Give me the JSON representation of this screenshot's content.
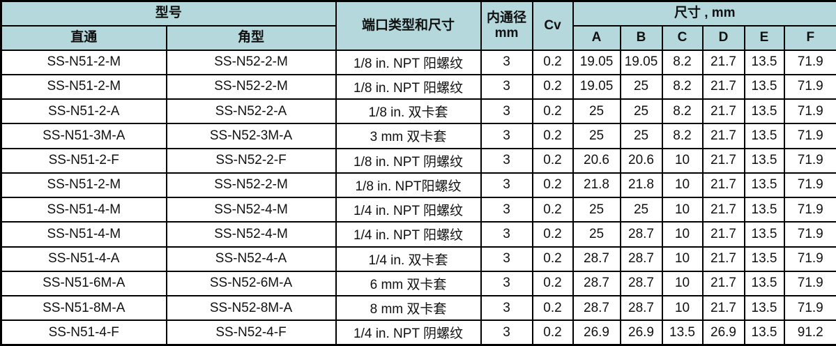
{
  "colors": {
    "header_bg": "#b5d8dc",
    "row_bg": "#ffffff",
    "border": "#000000",
    "text": "#111111"
  },
  "table": {
    "header": {
      "model_group": "型号",
      "straight": "直通",
      "angle": "角型",
      "port": "端口类型和尺寸",
      "bore": "内通径\nmm",
      "cv": "Cv",
      "dims_group": "尺寸 , mm",
      "dim_cols": {
        "a": "A",
        "b": "B",
        "c": "C",
        "d": "D",
        "e": "E",
        "f": "F"
      }
    },
    "rows": [
      {
        "straight": "SS-N51-2-M",
        "angle": "SS-N52-2-M",
        "port": "1/8 in. NPT 阳螺纹",
        "bore": "3",
        "cv": "0.2",
        "A": "19.05",
        "B": "19.05",
        "C": "8.2",
        "D": "21.7",
        "E": "13.5",
        "F": "71.9"
      },
      {
        "straight": "SS-N51-2-M",
        "angle": "SS-N52-2-M",
        "port": "1/8 in. NPT 阳螺纹",
        "bore": "3",
        "cv": "0.2",
        "A": "19.05",
        "B": "25",
        "C": "8.2",
        "D": "21.7",
        "E": "13.5",
        "F": "71.9"
      },
      {
        "straight": "SS-N51-2-A",
        "angle": "SS-N52-2-A",
        "port": "1/8 in. 双卡套",
        "bore": "3",
        "cv": "0.2",
        "A": "25",
        "B": "25",
        "C": "8.2",
        "D": "21.7",
        "E": "13.5",
        "F": "71.9"
      },
      {
        "straight": "SS-N51-3M-A",
        "angle": "SS-N52-3M-A",
        "port": "3 mm 双卡套",
        "bore": "3",
        "cv": "0.2",
        "A": "25",
        "B": "25",
        "C": "8.2",
        "D": "21.7",
        "E": "13.5",
        "F": "71.9"
      },
      {
        "straight": "SS-N51-2-F",
        "angle": "SS-N52-2-F",
        "port": "1/8 in. NPT 阴螺纹",
        "bore": "3",
        "cv": "0.2",
        "A": "20.6",
        "B": "20.6",
        "C": "10",
        "D": "21.7",
        "E": "13.5",
        "F": "71.9"
      },
      {
        "straight": "SS-N51-2-M",
        "angle": "SS-N52-2-M",
        "port": "1/8 in. NPT阳螺纹",
        "bore": "3",
        "cv": "0.2",
        "A": "21.8",
        "B": "21.8",
        "C": "10",
        "D": "21.7",
        "E": "13.5",
        "F": "71.9"
      },
      {
        "straight": "SS-N51-4-M",
        "angle": "SS-N52-4-M",
        "port": "1/4 in. NPT 阳螺纹",
        "bore": "3",
        "cv": "0.2",
        "A": "25",
        "B": "25",
        "C": "10",
        "D": "21.7",
        "E": "13.5",
        "F": "71.9"
      },
      {
        "straight": "SS-N51-4-M",
        "angle": "SS-N52-4-M",
        "port": "1/4 in. NPT 阳螺纹",
        "bore": "3",
        "cv": "0.2",
        "A": "25",
        "B": "28.7",
        "C": "10",
        "D": "21.7",
        "E": "13.5",
        "F": "71.9"
      },
      {
        "straight": "SS-N51-4-A",
        "angle": "SS-N52-4-A",
        "port": "1/4 in. 双卡套",
        "bore": "3",
        "cv": "0.2",
        "A": "28.7",
        "B": "28.7",
        "C": "10",
        "D": "21.7",
        "E": "13.5",
        "F": "71.9"
      },
      {
        "straight": "SS-N51-6M-A",
        "angle": "SS-N52-6M-A",
        "port": "6 mm 双卡套",
        "bore": "3",
        "cv": "0.2",
        "A": "28.7",
        "B": "28.7",
        "C": "10",
        "D": "21.7",
        "E": "13.5",
        "F": "71.9"
      },
      {
        "straight": "SS-N51-8M-A",
        "angle": "SS-N52-8M-A",
        "port": "8 mm 双卡套",
        "bore": "3",
        "cv": "0.2",
        "A": "28.7",
        "B": "28.7",
        "C": "10",
        "D": "21.7",
        "E": "13.5",
        "F": "71.9"
      },
      {
        "straight": "SS-N51-4-F",
        "angle": "SS-N52-4-F",
        "port": "1/4 in. NPT 阴螺纹",
        "bore": "3",
        "cv": "0.2",
        "A": "26.9",
        "B": "26.9",
        "C": "13.5",
        "D": "26.9",
        "E": "13.5",
        "F": "91.2"
      }
    ]
  },
  "chart_data": {
    "type": "table",
    "title": "",
    "columns": [
      "直通",
      "角型",
      "端口类型和尺寸",
      "内通径 mm",
      "Cv",
      "A",
      "B",
      "C",
      "D",
      "E",
      "F"
    ],
    "column_groups": [
      {
        "label": "型号",
        "spans": [
          "直通",
          "角型"
        ]
      },
      {
        "label": "尺寸 , mm",
        "spans": [
          "A",
          "B",
          "C",
          "D",
          "E",
          "F"
        ]
      }
    ],
    "rows": [
      [
        "SS-N51-2-M",
        "SS-N52-2-M",
        "1/8 in. NPT 阳螺纹",
        3,
        0.2,
        19.05,
        19.05,
        8.2,
        21.7,
        13.5,
        71.9
      ],
      [
        "SS-N51-2-M",
        "SS-N52-2-M",
        "1/8 in. NPT 阳螺纹",
        3,
        0.2,
        19.05,
        25,
        8.2,
        21.7,
        13.5,
        71.9
      ],
      [
        "SS-N51-2-A",
        "SS-N52-2-A",
        "1/8 in. 双卡套",
        3,
        0.2,
        25,
        25,
        8.2,
        21.7,
        13.5,
        71.9
      ],
      [
        "SS-N51-3M-A",
        "SS-N52-3M-A",
        "3 mm 双卡套",
        3,
        0.2,
        25,
        25,
        8.2,
        21.7,
        13.5,
        71.9
      ],
      [
        "SS-N51-2-F",
        "SS-N52-2-F",
        "1/8 in. NPT 阴螺纹",
        3,
        0.2,
        20.6,
        20.6,
        10,
        21.7,
        13.5,
        71.9
      ],
      [
        "SS-N51-2-M",
        "SS-N52-2-M",
        "1/8 in. NPT阳螺纹",
        3,
        0.2,
        21.8,
        21.8,
        10,
        21.7,
        13.5,
        71.9
      ],
      [
        "SS-N51-4-M",
        "SS-N52-4-M",
        "1/4 in. NPT 阳螺纹",
        3,
        0.2,
        25,
        25,
        10,
        21.7,
        13.5,
        71.9
      ],
      [
        "SS-N51-4-M",
        "SS-N52-4-M",
        "1/4 in. NPT 阳螺纹",
        3,
        0.2,
        25,
        28.7,
        10,
        21.7,
        13.5,
        71.9
      ],
      [
        "SS-N51-4-A",
        "SS-N52-4-A",
        "1/4 in. 双卡套",
        3,
        0.2,
        28.7,
        28.7,
        10,
        21.7,
        13.5,
        71.9
      ],
      [
        "SS-N51-6M-A",
        "SS-N52-6M-A",
        "6 mm 双卡套",
        3,
        0.2,
        28.7,
        28.7,
        10,
        21.7,
        13.5,
        71.9
      ],
      [
        "SS-N51-8M-A",
        "SS-N52-8M-A",
        "8 mm 双卡套",
        3,
        0.2,
        28.7,
        28.7,
        10,
        21.7,
        13.5,
        71.9
      ],
      [
        "SS-N51-4-F",
        "SS-N52-4-F",
        "1/4 in. NPT 阴螺纹",
        3,
        0.2,
        26.9,
        26.9,
        13.5,
        26.9,
        13.5,
        91.2
      ]
    ]
  }
}
